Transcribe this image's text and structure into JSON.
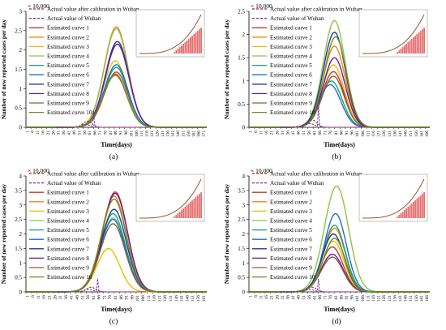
{
  "figure": {
    "shared": {
      "y_multiplier": "× 10,000",
      "xlabel": "Time(days)",
      "ylabel": "Number of new reported cases per day",
      "x_ticks": [
        "1",
        "6",
        "11",
        "16",
        "21",
        "26",
        "31",
        "36",
        "41",
        "46",
        "51",
        "56",
        "61",
        "66",
        "71",
        "76",
        "81",
        "86",
        "91",
        "96",
        "101",
        "106",
        "111",
        "116",
        "121",
        "126",
        "131",
        "136",
        "141",
        "146",
        "151",
        "156",
        "161",
        "166",
        "171"
      ],
      "legend": [
        "Actual value after calibration in Wuhan",
        "Actual value of Wuhan",
        "Estimated curve 1",
        "Estimated curve 2",
        "Estimated curve 3",
        "Estimated curve 4",
        "Estimated curve 5",
        "Estimated curve 6",
        "Estimated curve 7",
        "Estimated curve 8",
        "Estimated curve 9",
        "Estimated curve 10"
      ],
      "colors": {
        "calibrated": "#b22222",
        "actual": "#7030a0",
        "curves": [
          "#c0392b",
          "#ff7f0e",
          "#e6c200",
          "#8bc34a",
          "#16a085",
          "#1f6fc5",
          "#1f3a93",
          "#6a1b9a",
          "#8b5e3c",
          "#6b8e23"
        ],
        "inset_bar": "#e57373",
        "inset_line": "#a0522d"
      }
    }
  },
  "chart_data": [
    {
      "type": "line",
      "label": "(a)",
      "ylim": [
        0,
        3
      ],
      "yticks": [
        0,
        0.5,
        1,
        1.5,
        2,
        2.5,
        3
      ],
      "xlim": [
        1,
        175
      ],
      "series": [
        {
          "name": "Estimated curve 1",
          "peak_x": 88,
          "peak_y": 1.43,
          "width": 11
        },
        {
          "name": "Estimated curve 2",
          "peak_x": 88,
          "peak_y": 2.6,
          "width": 11
        },
        {
          "name": "Estimated curve 3",
          "peak_x": 87,
          "peak_y": 1.72,
          "width": 11
        },
        {
          "name": "Estimated curve 4",
          "peak_x": 88,
          "peak_y": 2.55,
          "width": 11
        },
        {
          "name": "Estimated curve 5",
          "peak_x": 88,
          "peak_y": 1.55,
          "width": 11
        },
        {
          "name": "Estimated curve 6",
          "peak_x": 88,
          "peak_y": 1.62,
          "width": 11
        },
        {
          "name": "Estimated curve 7",
          "peak_x": 89,
          "peak_y": 2.22,
          "width": 11
        },
        {
          "name": "Estimated curve 8",
          "peak_x": 89,
          "peak_y": 2.15,
          "width": 11
        },
        {
          "name": "Estimated curve 9",
          "peak_x": 87,
          "peak_y": 1.35,
          "width": 11
        },
        {
          "name": "Estimated curve 10",
          "peak_x": 87,
          "peak_y": 1.38,
          "width": 11
        }
      ]
    },
    {
      "type": "line",
      "label": "(b)",
      "ylim": [
        0,
        2.5
      ],
      "yticks": [
        0,
        0.5,
        1,
        1.5,
        2,
        2.5
      ],
      "xlim": [
        1,
        170
      ],
      "series": [
        {
          "name": "Estimated curve 1",
          "peak_x": 80,
          "peak_y": 1.2,
          "width": 10
        },
        {
          "name": "Estimated curve 2",
          "peak_x": 81,
          "peak_y": 1.75,
          "width": 10
        },
        {
          "name": "Estimated curve 3",
          "peak_x": 80,
          "peak_y": 1.35,
          "width": 10
        },
        {
          "name": "Estimated curve 4",
          "peak_x": 81,
          "peak_y": 2.3,
          "width": 10
        },
        {
          "name": "Estimated curve 5",
          "peak_x": 78,
          "peak_y": 1.0,
          "width": 10
        },
        {
          "name": "Estimated curve 6",
          "peak_x": 77,
          "peak_y": 0.92,
          "width": 10
        },
        {
          "name": "Estimated curve 7",
          "peak_x": 81,
          "peak_y": 2.05,
          "width": 10
        },
        {
          "name": "Estimated curve 8",
          "peak_x": 81,
          "peak_y": 1.5,
          "width": 10
        },
        {
          "name": "Estimated curve 9",
          "peak_x": 80,
          "peak_y": 1.1,
          "width": 10
        },
        {
          "name": "Estimated curve 10",
          "peak_x": 82,
          "peak_y": 1.95,
          "width": 10
        }
      ]
    },
    {
      "type": "line",
      "label": "(c)",
      "ylim": [
        0,
        4
      ],
      "yticks": [
        0,
        0.5,
        1,
        1.5,
        2,
        2.5,
        3,
        3.5,
        4
      ],
      "xlim": [
        1,
        165
      ],
      "series": [
        {
          "name": "Estimated curve 1",
          "peak_x": 82,
          "peak_y": 3.45,
          "width": 11
        },
        {
          "name": "Estimated curve 2",
          "peak_x": 81,
          "peak_y": 3.3,
          "width": 11
        },
        {
          "name": "Estimated curve 3",
          "peak_x": 76,
          "peak_y": 1.5,
          "width": 10
        },
        {
          "name": "Estimated curve 4",
          "peak_x": 80,
          "peak_y": 2.55,
          "width": 11
        },
        {
          "name": "Estimated curve 5",
          "peak_x": 80,
          "peak_y": 2.7,
          "width": 11
        },
        {
          "name": "Estimated curve 6",
          "peak_x": 80,
          "peak_y": 2.5,
          "width": 11
        },
        {
          "name": "Estimated curve 7",
          "peak_x": 81,
          "peak_y": 2.85,
          "width": 11
        },
        {
          "name": "Estimated curve 8",
          "peak_x": 82,
          "peak_y": 3.4,
          "width": 11
        },
        {
          "name": "Estimated curve 9",
          "peak_x": 80,
          "peak_y": 2.35,
          "width": 11
        },
        {
          "name": "Estimated curve 10",
          "peak_x": 81,
          "peak_y": 3.2,
          "width": 11
        }
      ]
    },
    {
      "type": "line",
      "label": "(d)",
      "ylim": [
        0,
        4
      ],
      "yticks": [
        0,
        0.5,
        1,
        1.5,
        2,
        2.5,
        3,
        3.5,
        4
      ],
      "xlim": [
        1,
        170
      ],
      "series": [
        {
          "name": "Estimated curve 1",
          "peak_x": 79,
          "peak_y": 1.55,
          "width": 10
        },
        {
          "name": "Estimated curve 2",
          "peak_x": 81,
          "peak_y": 2.2,
          "width": 10
        },
        {
          "name": "Estimated curve 3",
          "peak_x": 80,
          "peak_y": 1.75,
          "width": 10
        },
        {
          "name": "Estimated curve 4",
          "peak_x": 83,
          "peak_y": 3.65,
          "width": 11
        },
        {
          "name": "Estimated curve 5",
          "peak_x": 81,
          "peak_y": 2.3,
          "width": 10
        },
        {
          "name": "Estimated curve 6",
          "peak_x": 82,
          "peak_y": 2.7,
          "width": 10
        },
        {
          "name": "Estimated curve 7",
          "peak_x": 80,
          "peak_y": 2.0,
          "width": 10
        },
        {
          "name": "Estimated curve 8",
          "peak_x": 79,
          "peak_y": 1.3,
          "width": 10
        },
        {
          "name": "Estimated curve 9",
          "peak_x": 79,
          "peak_y": 1.2,
          "width": 10
        },
        {
          "name": "Estimated curve 10",
          "peak_x": 81,
          "peak_y": 1.85,
          "width": 10
        }
      ]
    }
  ]
}
